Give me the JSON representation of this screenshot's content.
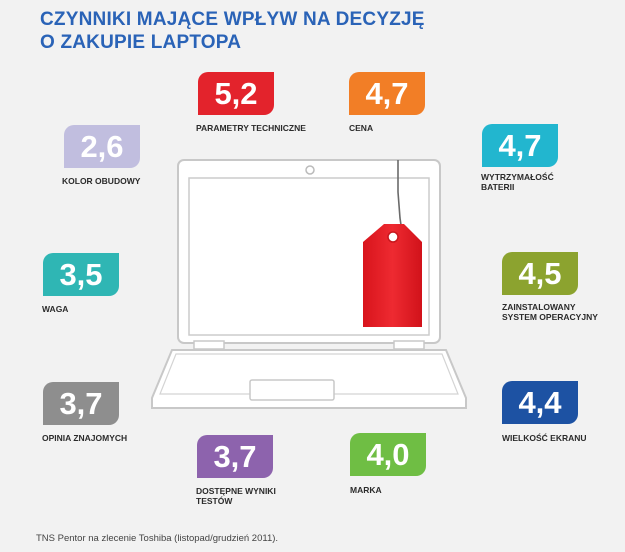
{
  "title": {
    "line1": "CZYNNIKI MAJĄCE WPŁYW NA DECYZJĘ",
    "line2": "O ZAKUPIE LAPTOPA"
  },
  "chart_data": {
    "type": "table",
    "title": "CZYNNIKI MAJĄCE WPŁYW NA DECYZJĘ O ZAKUPIE LAPTOPA",
    "categories": [
      "PARAMETRY TECHNICZNE",
      "CENA",
      "WYTRZYMAŁOŚĆ BATERII",
      "ZAINSTALOWANY SYSTEM OPERACYJNY",
      "WIELKOŚĆ EKRANU",
      "MARKA",
      "DOSTĘPNE WYNIKI TESTÓW",
      "OPINIA ZNAJOMYCH",
      "WAGA",
      "KOLOR OBUDOWY"
    ],
    "values": [
      "5,2",
      "4,7",
      "4,7",
      "4,5",
      "4,4",
      "4,0",
      "3,7",
      "3,7",
      "3,5",
      "2,6"
    ],
    "colors": [
      "#e3232c",
      "#f27e26",
      "#22b6cf",
      "#8ca32f",
      "#1d52a3",
      "#6fbe44",
      "#8d63ad",
      "#8e8e8e",
      "#2fb6b4",
      "#c1bedf"
    ]
  },
  "source": "TNS Pentor na zlecenie Toshiba (listopad/grudzień 2011)."
}
